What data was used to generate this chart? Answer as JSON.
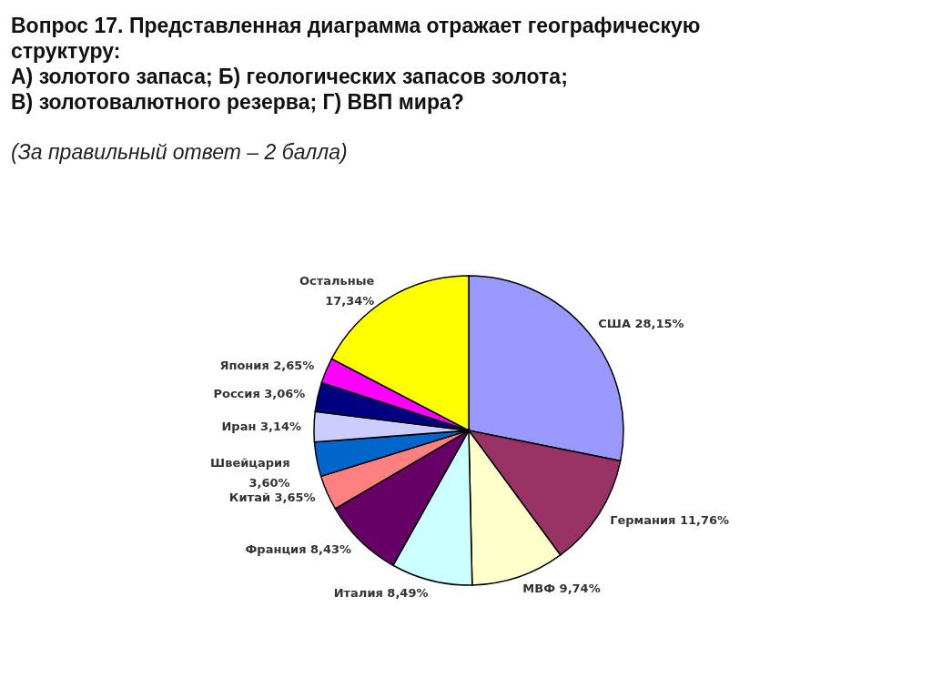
{
  "chart_data": {
    "type": "pie",
    "title": "Вопрос 17. Представленная диаграмма отражает географическую\nструктуру:\nА) золотого запаса;   Б)  геологических запасов золота;\nВ) золотовалютного резерва; Г) ВВП мира?",
    "annotations": [
      "(За правильный ответ – 2 балла)"
    ],
    "categories": [
      "США",
      "Германия",
      "МВФ",
      "Италия",
      "Франция",
      "Китай",
      "Швейцария",
      "Иран",
      "Россия",
      "Япония",
      "Остальные"
    ],
    "values": [
      28.15,
      11.76,
      9.74,
      8.49,
      8.43,
      3.65,
      3.6,
      3.14,
      3.06,
      2.65,
      17.34
    ],
    "value_labels": [
      "28,15%",
      "11,76%",
      "9,74%",
      "8,49%",
      "8,43%",
      "3,65%",
      "3,60%",
      "3,14%",
      "3,06%",
      "2,65%",
      "17,34%"
    ],
    "colors": [
      "#9999ff",
      "#993366",
      "#ffffcc",
      "#ccffff",
      "#660066",
      "#ff8080",
      "#0066cc",
      "#ccccff",
      "#000080",
      "#ff00ff",
      "#ffff00"
    ]
  }
}
